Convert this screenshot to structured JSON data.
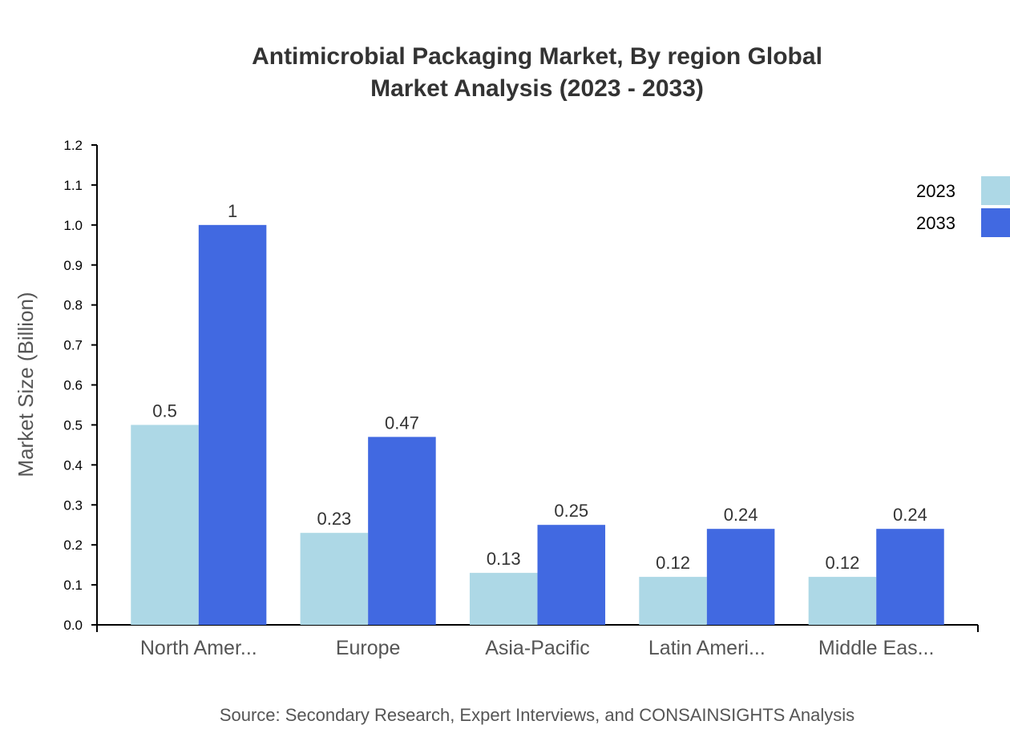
{
  "chart_data": {
    "type": "bar",
    "title": [
      "Antimicrobial Packaging Market, By region Global",
      "Market Analysis (2023 - 2033)"
    ],
    "ylabel": "Market Size (Billion)",
    "xlabel": "",
    "categories": [
      "North Amer...",
      "Europe",
      "Asia-Pacific",
      "Latin Ameri...",
      "Middle Eas..."
    ],
    "series": [
      {
        "name": "2023",
        "color": "#ADD8E6",
        "values": [
          0.5,
          0.23,
          0.13,
          0.12,
          0.12
        ]
      },
      {
        "name": "2033",
        "color": "#4169E1",
        "values": [
          1,
          0.47,
          0.25,
          0.24,
          0.24
        ]
      }
    ],
    "ylim": [
      0,
      1.2
    ],
    "yticks": [
      "0.0",
      "0.1",
      "0.2",
      "0.3",
      "0.4",
      "0.5",
      "0.6",
      "0.7",
      "0.8",
      "0.9",
      "1.0",
      "1.1",
      "1.2"
    ],
    "grid": false,
    "legend": "top-right",
    "source": "Source: Secondary Research, Expert Interviews, and CONSAINSIGHTS Analysis"
  }
}
